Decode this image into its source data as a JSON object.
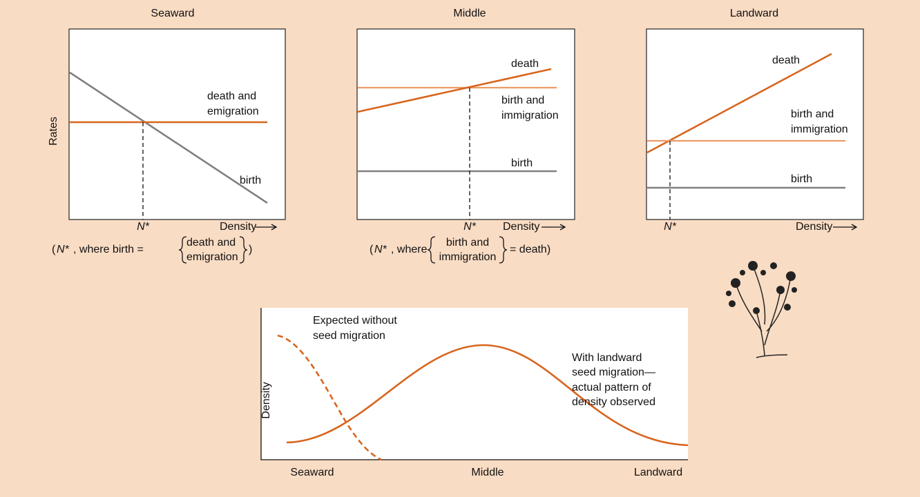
{
  "panels": [
    {
      "title": "Seaward",
      "y_label": "Rates",
      "labels": [
        "death and",
        "emigration",
        "birth"
      ],
      "n_star": "N*",
      "x_label": "Density",
      "caption": {
        "open": "(",
        "n_star": "N*",
        "lead": ", where birth =",
        "term": [
          "death and",
          "emigration"
        ],
        "close": ")"
      }
    },
    {
      "title": "Middle",
      "labels": [
        "death",
        "birth and",
        "immigration",
        "birth"
      ],
      "n_star": "N*",
      "x_label": "Density",
      "caption": {
        "open": "(",
        "n_star": "N*",
        "lead": ", where",
        "term": [
          "birth and",
          "immigration"
        ],
        "close": "= death)"
      }
    },
    {
      "title": "Landward",
      "labels": [
        "death",
        "birth and",
        "immigration",
        "birth"
      ],
      "n_star": "N*",
      "x_label": "Density"
    }
  ],
  "bottom": {
    "y_label": "Density",
    "expected": [
      "Expected without",
      "seed migration"
    ],
    "actual": [
      "With landward",
      "seed migration—",
      "actual pattern of",
      "density observed"
    ],
    "x_labels": [
      "Seaward",
      "Middle",
      "Landward"
    ]
  }
}
